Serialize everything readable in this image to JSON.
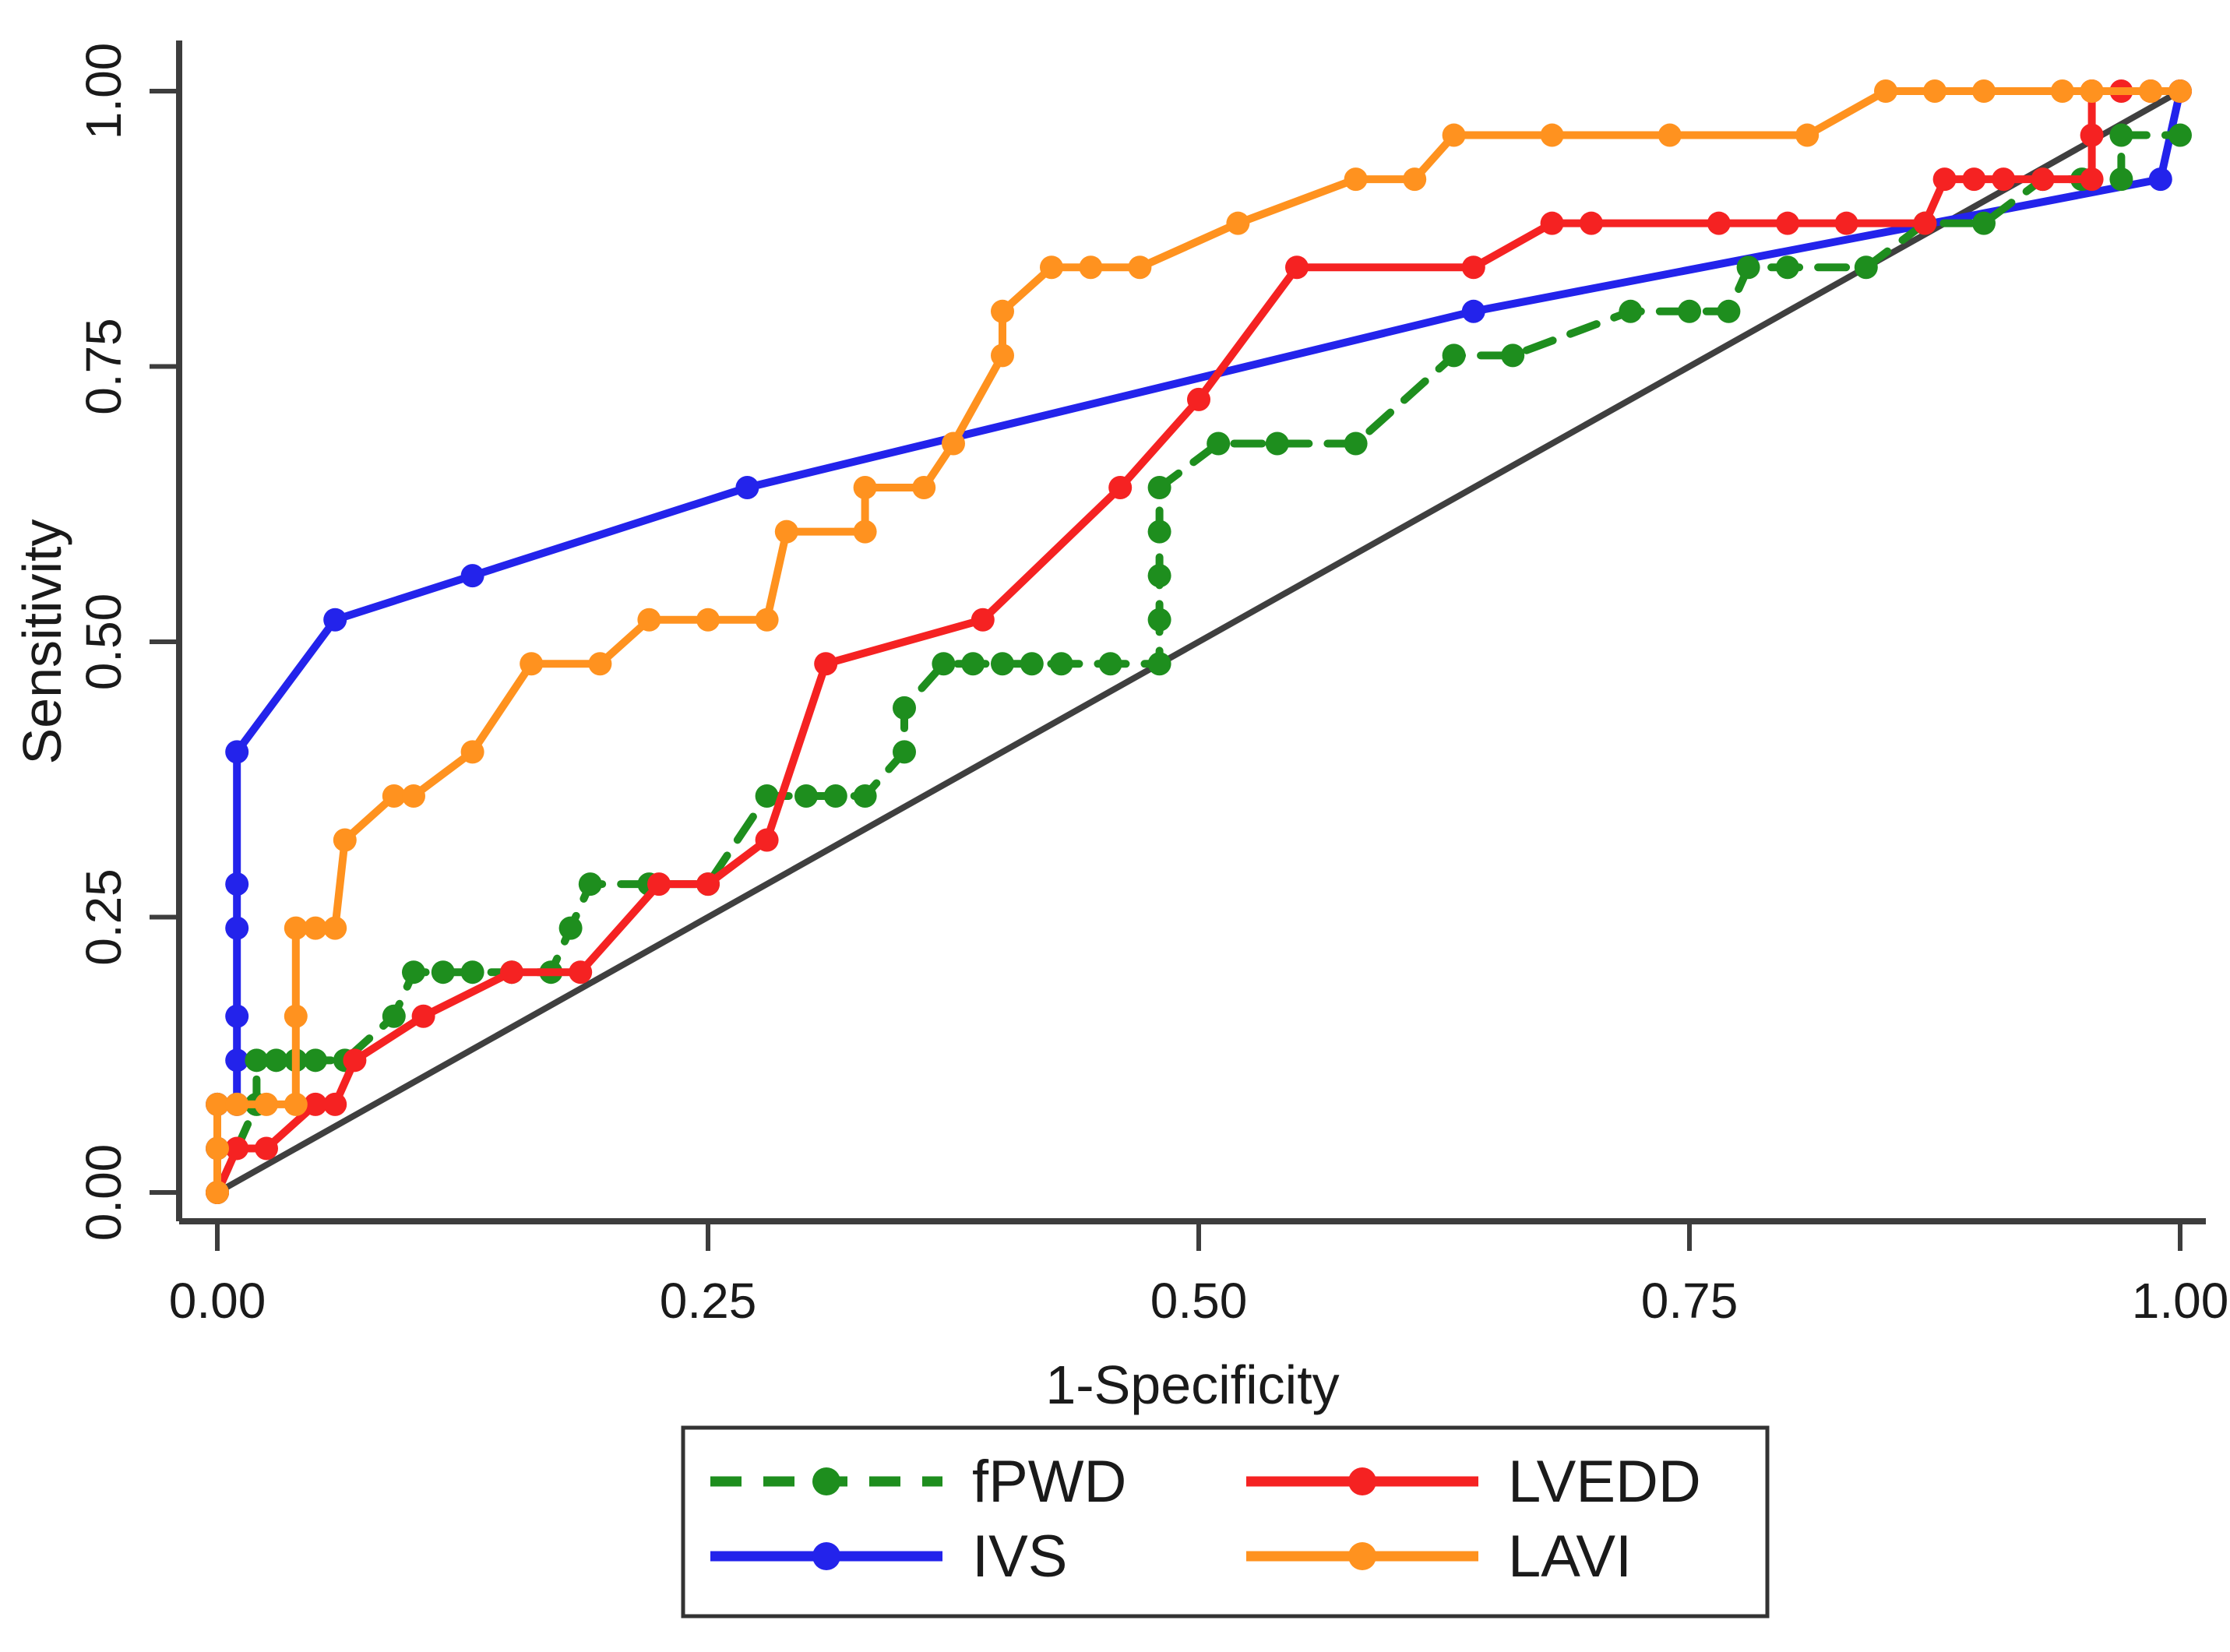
{
  "chart_data": {
    "type": "line",
    "subtype": "roc-curves",
    "title": "",
    "xlabel": "1-Specificity",
    "ylabel": "Sensitivity",
    "xlim": [
      0,
      1
    ],
    "ylim": [
      0,
      1
    ],
    "grid": false,
    "x_ticks": [
      0.0,
      0.25,
      0.5,
      0.75,
      1.0
    ],
    "y_ticks": [
      0.0,
      0.25,
      0.5,
      0.75,
      1.0
    ],
    "x_tick_labels": [
      "0.00",
      "0.25",
      "0.50",
      "0.75",
      "1.00"
    ],
    "y_tick_labels": [
      "0.00",
      "0.25",
      "0.50",
      "0.75",
      "1.00"
    ],
    "legend_position": "bottom",
    "reference_line": {
      "name": "chance-diagonal",
      "color": "#3f3f3f",
      "points": [
        [
          0,
          0
        ],
        [
          1,
          1
        ]
      ]
    },
    "series": [
      {
        "name": "fPWD",
        "color": "#1e8e1e",
        "style": "dashed",
        "points": [
          [
            0,
            0
          ],
          [
            0.02,
            0.08
          ],
          [
            0.02,
            0.12
          ],
          [
            0.03,
            0.12
          ],
          [
            0.04,
            0.12
          ],
          [
            0.05,
            0.12
          ],
          [
            0.065,
            0.12
          ],
          [
            0.09,
            0.16
          ],
          [
            0.1,
            0.2
          ],
          [
            0.115,
            0.2
          ],
          [
            0.13,
            0.2
          ],
          [
            0.15,
            0.2
          ],
          [
            0.17,
            0.2
          ],
          [
            0.18,
            0.24
          ],
          [
            0.19,
            0.28
          ],
          [
            0.22,
            0.28
          ],
          [
            0.25,
            0.28
          ],
          [
            0.28,
            0.36
          ],
          [
            0.3,
            0.36
          ],
          [
            0.315,
            0.36
          ],
          [
            0.33,
            0.36
          ],
          [
            0.35,
            0.4
          ],
          [
            0.35,
            0.44
          ],
          [
            0.37,
            0.48
          ],
          [
            0.385,
            0.48
          ],
          [
            0.4,
            0.48
          ],
          [
            0.415,
            0.48
          ],
          [
            0.43,
            0.48
          ],
          [
            0.455,
            0.48
          ],
          [
            0.48,
            0.48
          ],
          [
            0.48,
            0.52
          ],
          [
            0.48,
            0.56
          ],
          [
            0.48,
            0.6
          ],
          [
            0.48,
            0.64
          ],
          [
            0.51,
            0.68
          ],
          [
            0.54,
            0.68
          ],
          [
            0.58,
            0.68
          ],
          [
            0.63,
            0.76
          ],
          [
            0.66,
            0.76
          ],
          [
            0.72,
            0.8
          ],
          [
            0.75,
            0.8
          ],
          [
            0.77,
            0.8
          ],
          [
            0.78,
            0.84
          ],
          [
            0.8,
            0.84
          ],
          [
            0.84,
            0.84
          ],
          [
            0.87,
            0.88
          ],
          [
            0.9,
            0.88
          ],
          [
            0.93,
            0.92
          ],
          [
            0.95,
            0.92
          ],
          [
            0.97,
            0.92
          ],
          [
            0.97,
            0.96
          ],
          [
            1.0,
            0.96
          ]
        ]
      },
      {
        "name": "LVEDD",
        "color": "#f52222",
        "style": "solid",
        "points": [
          [
            0,
            0
          ],
          [
            0.01,
            0.04
          ],
          [
            0.025,
            0.04
          ],
          [
            0.05,
            0.08
          ],
          [
            0.06,
            0.08
          ],
          [
            0.07,
            0.12
          ],
          [
            0.105,
            0.16
          ],
          [
            0.15,
            0.2
          ],
          [
            0.185,
            0.2
          ],
          [
            0.225,
            0.28
          ],
          [
            0.25,
            0.28
          ],
          [
            0.28,
            0.32
          ],
          [
            0.31,
            0.48
          ],
          [
            0.39,
            0.52
          ],
          [
            0.46,
            0.64
          ],
          [
            0.5,
            0.72
          ],
          [
            0.55,
            0.84
          ],
          [
            0.64,
            0.84
          ],
          [
            0.68,
            0.88
          ],
          [
            0.7,
            0.88
          ],
          [
            0.765,
            0.88
          ],
          [
            0.8,
            0.88
          ],
          [
            0.83,
            0.88
          ],
          [
            0.87,
            0.88
          ],
          [
            0.88,
            0.92
          ],
          [
            0.895,
            0.92
          ],
          [
            0.91,
            0.92
          ],
          [
            0.93,
            0.92
          ],
          [
            0.955,
            0.92
          ],
          [
            0.955,
            0.96
          ],
          [
            0.955,
            1.0
          ],
          [
            0.97,
            1.0
          ],
          [
            0.985,
            1.0
          ],
          [
            1.0,
            1.0
          ]
        ]
      },
      {
        "name": "IVS",
        "color": "#2323eb",
        "style": "solid",
        "points": [
          [
            0,
            0
          ],
          [
            0,
            0.04
          ],
          [
            0,
            0.08
          ],
          [
            0.01,
            0.08
          ],
          [
            0.01,
            0.12
          ],
          [
            0.01,
            0.16
          ],
          [
            0.01,
            0.24
          ],
          [
            0.01,
            0.28
          ],
          [
            0.01,
            0.4
          ],
          [
            0.06,
            0.52
          ],
          [
            0.13,
            0.56
          ],
          [
            0.27,
            0.64
          ],
          [
            0.64,
            0.8
          ],
          [
            0.99,
            0.92
          ],
          [
            1.0,
            1.0
          ]
        ]
      },
      {
        "name": "LAVI",
        "color": "#ff921f",
        "style": "solid",
        "points": [
          [
            0,
            0
          ],
          [
            0,
            0.04
          ],
          [
            0,
            0.08
          ],
          [
            0.01,
            0.08
          ],
          [
            0.025,
            0.08
          ],
          [
            0.04,
            0.08
          ],
          [
            0.04,
            0.16
          ],
          [
            0.04,
            0.24
          ],
          [
            0.05,
            0.24
          ],
          [
            0.06,
            0.24
          ],
          [
            0.065,
            0.32
          ],
          [
            0.09,
            0.36
          ],
          [
            0.1,
            0.36
          ],
          [
            0.13,
            0.4
          ],
          [
            0.16,
            0.48
          ],
          [
            0.195,
            0.48
          ],
          [
            0.22,
            0.52
          ],
          [
            0.25,
            0.52
          ],
          [
            0.28,
            0.52
          ],
          [
            0.29,
            0.6
          ],
          [
            0.33,
            0.6
          ],
          [
            0.33,
            0.64
          ],
          [
            0.36,
            0.64
          ],
          [
            0.375,
            0.68
          ],
          [
            0.4,
            0.76
          ],
          [
            0.4,
            0.8
          ],
          [
            0.425,
            0.84
          ],
          [
            0.445,
            0.84
          ],
          [
            0.47,
            0.84
          ],
          [
            0.52,
            0.88
          ],
          [
            0.58,
            0.92
          ],
          [
            0.61,
            0.92
          ],
          [
            0.63,
            0.96
          ],
          [
            0.68,
            0.96
          ],
          [
            0.74,
            0.96
          ],
          [
            0.81,
            0.96
          ],
          [
            0.85,
            1.0
          ],
          [
            0.875,
            1.0
          ],
          [
            0.9,
            1.0
          ],
          [
            0.94,
            1.0
          ],
          [
            0.955,
            1.0
          ],
          [
            0.985,
            1.0
          ],
          [
            1.0,
            1.0
          ]
        ]
      }
    ],
    "legend_entries": [
      "fPWD",
      "LVEDD",
      "IVS",
      "LAVI"
    ]
  },
  "style": {
    "axis_color": "#3d3d3d",
    "text_color": "#1a1a1a",
    "background": "#ffffff",
    "legend_border": "#333333"
  }
}
